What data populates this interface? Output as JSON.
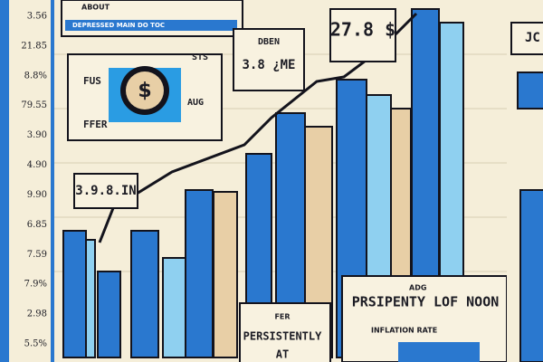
{
  "axis_labels": [
    "3.56",
    "21.85",
    "8.8%",
    "79.55",
    "3.90",
    "4.90",
    "9.90",
    "6.85",
    "7.59",
    "7.9%",
    "2.98",
    "5.5%"
  ],
  "header": {
    "title": "ABOUT",
    "subtitle": "DEPRESSED MAIN DO TOC"
  },
  "card": {
    "top_left": "FUS",
    "bottom_left": "FFER",
    "top_right": "STS",
    "bottom_right": "AUG",
    "symbol": "$"
  },
  "callouts": [
    {
      "title": "DBEN",
      "value": "3.8 ¿ME"
    },
    {
      "value": "27.8 $"
    },
    {
      "value": "3.9.8.IN"
    }
  ],
  "footer": {
    "small": "FER",
    "line1": "PERSISTENTLY",
    "line2": "AT"
  },
  "caption": {
    "small": "ADG",
    "title": "PRSIPENTY LOF NOON",
    "subtitle": "INFLATION RATE"
  },
  "corner": "JC"
}
